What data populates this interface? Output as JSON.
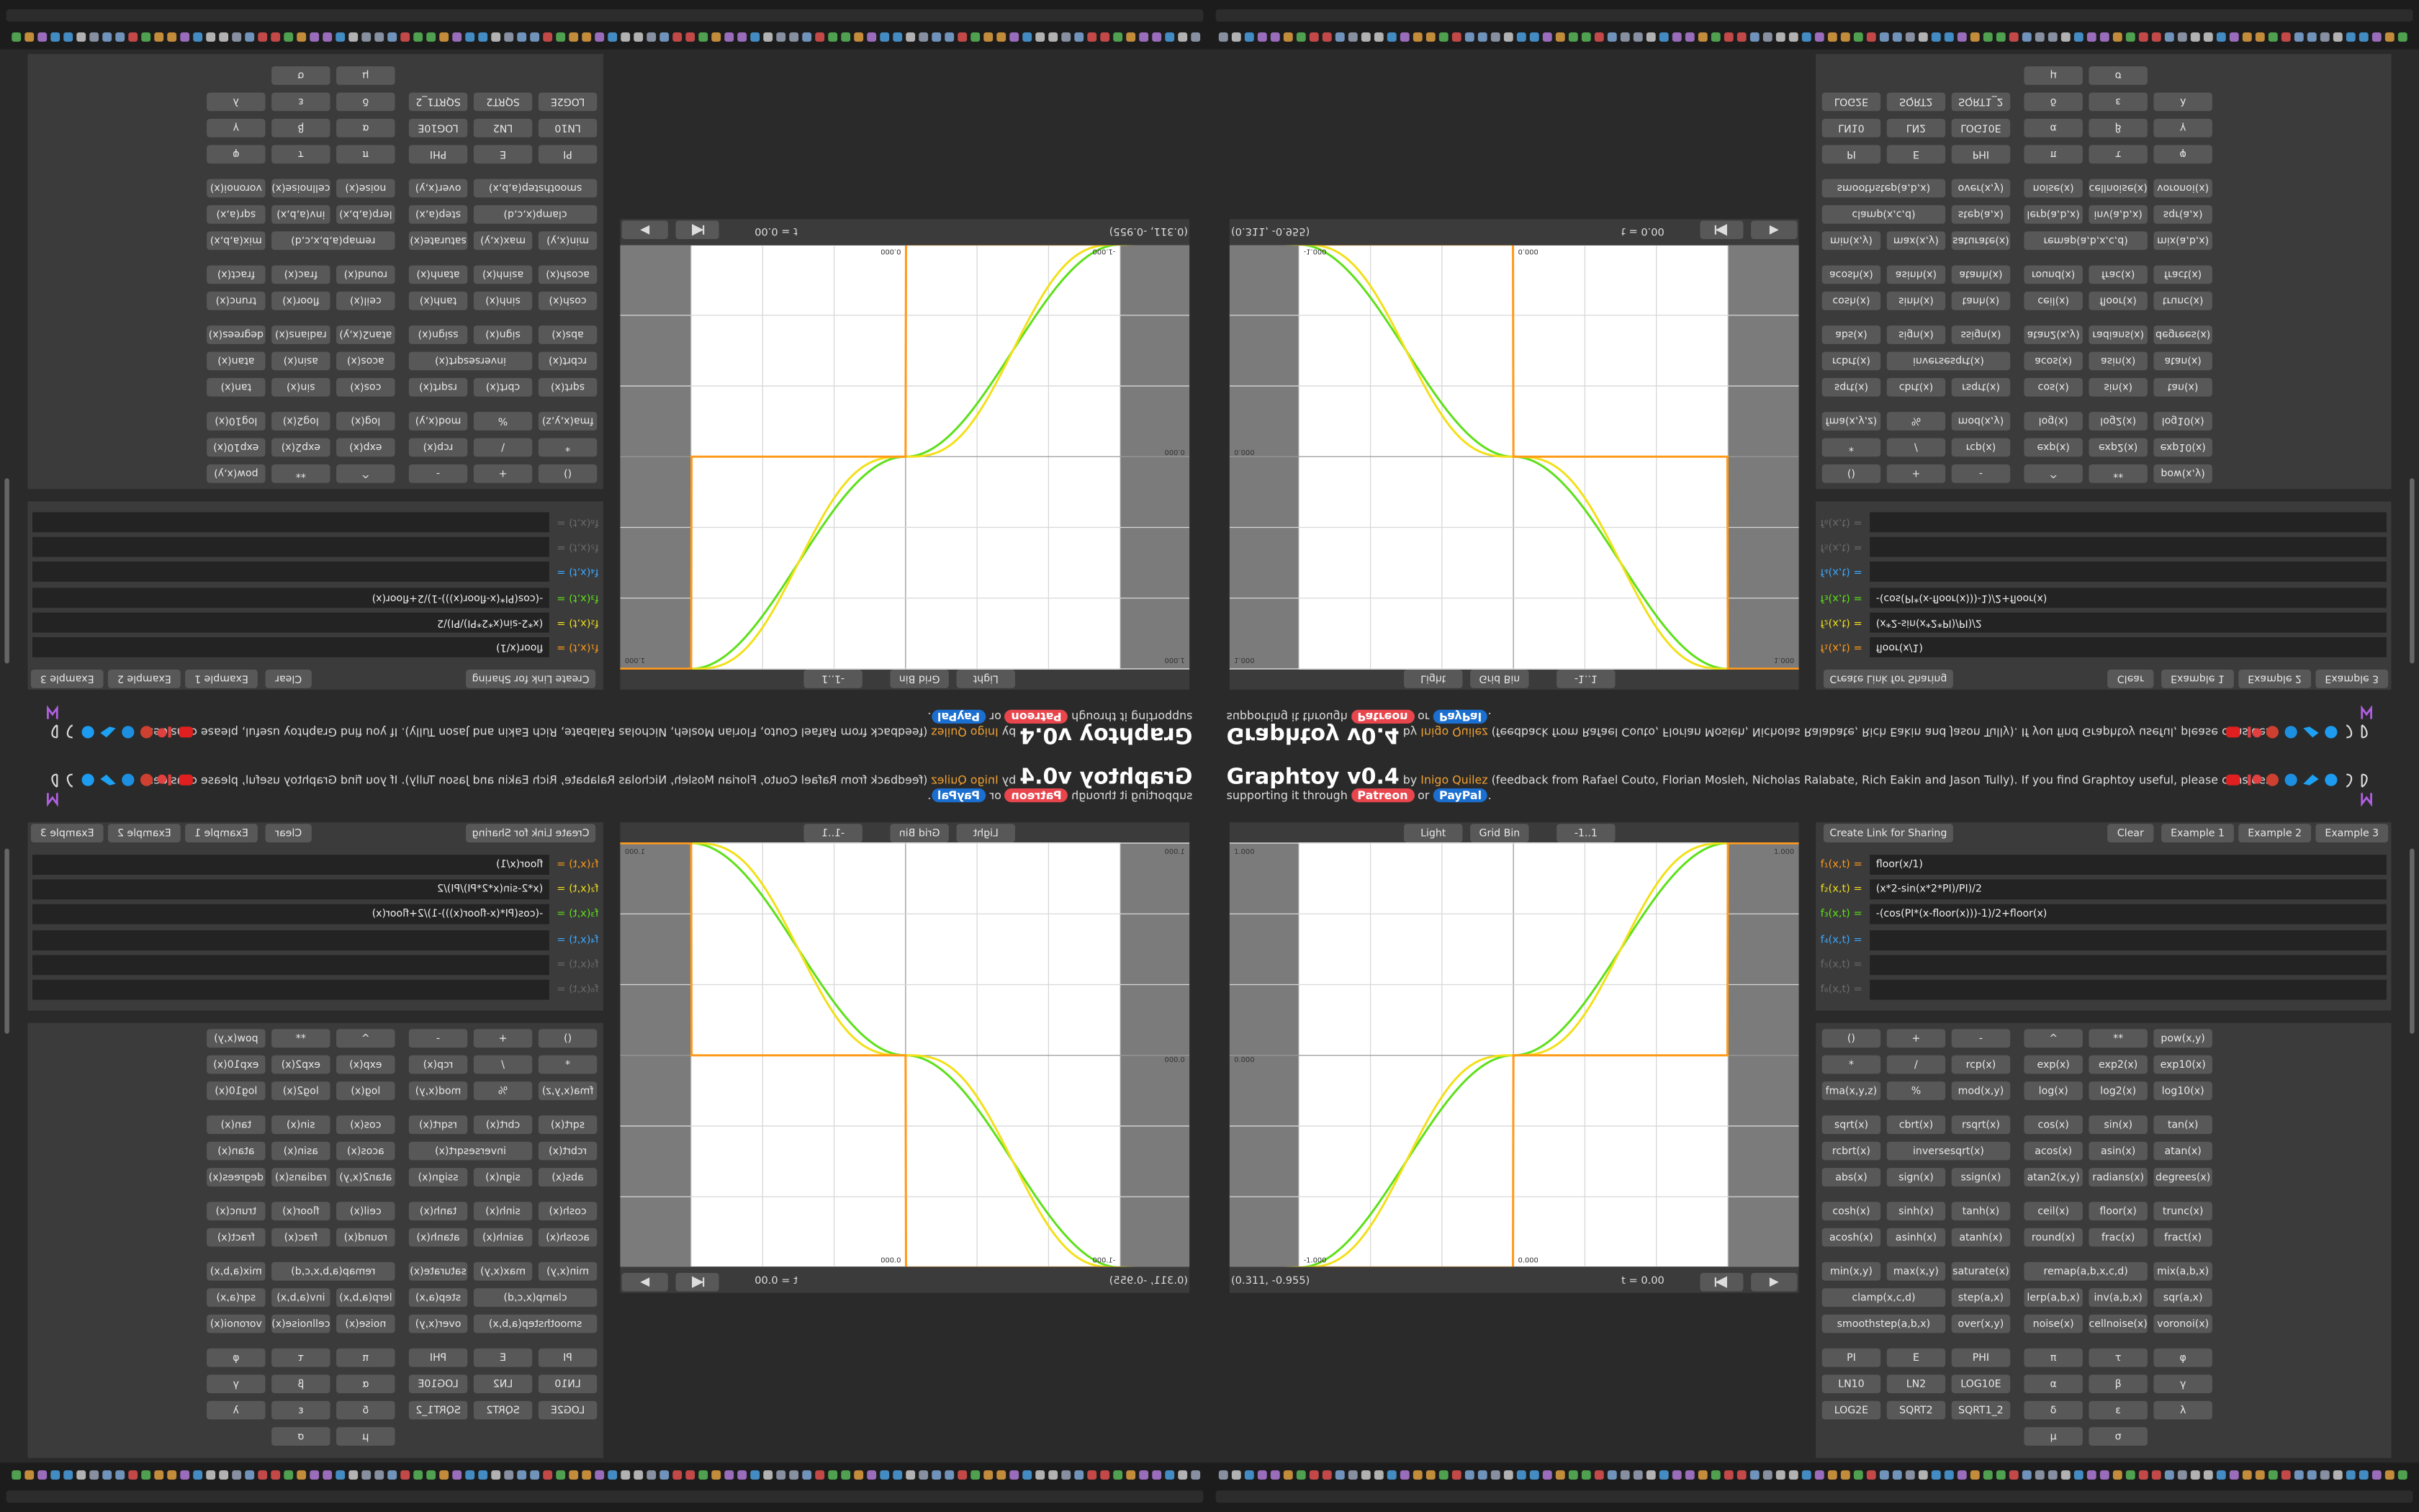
{
  "header": {
    "title": "Graphtoy v0.4",
    "by": "by",
    "author": "Inigo Quilez",
    "credits": "(feedback from Rafael Couto, Florian Mosleh, Nicholas Ralabate, Rich Eakin and Jason Tully). If you find Graphtoy useful, please consider",
    "support": "supporting it through",
    "patreon": "Patreon",
    "or": "or",
    "paypal": "PayPal",
    "end": "."
  },
  "plot": {
    "buttons": [
      "Light",
      "Grid Bin",
      "-1..1"
    ],
    "axis_labels": [
      "1.000",
      "0.000",
      "-1.000",
      "0.000",
      "1.000"
    ],
    "coords": "(0.311, -0.955)",
    "time": "t = 0.00"
  },
  "formulas": {
    "share": "Create Link for Sharing",
    "clear": "Clear",
    "examples": [
      "Example 1",
      "Example 2",
      "Example 3"
    ],
    "rows": [
      {
        "label": "f₁(x,t) =",
        "expr": "floor(x/1)",
        "color": "#ff9a1a"
      },
      {
        "label": "f₂(x,t) =",
        "expr": "(x*2-sin(x*2*PI)/PI)/2",
        "color": "#f2e01a"
      },
      {
        "label": "f₃(x,t) =",
        "expr": "-(cos(PI*(x-floor(x)))-1)/2+floor(x)",
        "color": "#5ee01a"
      },
      {
        "label": "f₄(x,t) =",
        "color": "#3aa8ff"
      },
      {
        "label": "f₅(x,t) =",
        "color": "#6a6a6a"
      },
      {
        "label": "f₆(x,t) =",
        "color": "#6a6a6a"
      }
    ]
  },
  "function_buttons": [
    [
      "()",
      "+",
      "-",
      "^",
      "**",
      "pow(x,y)"
    ],
    [
      "*",
      "/",
      "rcp(x)",
      "exp(x)",
      "exp2(x)",
      "exp10(x)"
    ],
    [
      "fma(x,y,z)",
      "%",
      "mod(x,y)",
      "log(x)",
      "log2(x)",
      "log10(x)"
    ],
    [
      "sqrt(x)",
      "cbrt(x)",
      "rsqrt(x)",
      "cos(x)",
      "sin(x)",
      "tan(x)"
    ],
    [
      "rcbrt(x)",
      "inversesqrt(x)",
      "acos(x)",
      "asin(x)",
      "atan(x)"
    ],
    [
      "abs(x)",
      "sign(x)",
      "ssign(x)",
      "atan2(x,y)",
      "radians(x)",
      "degrees(x)"
    ],
    [
      "cosh(x)",
      "sinh(x)",
      "tanh(x)",
      "ceil(x)",
      "floor(x)",
      "trunc(x)"
    ],
    [
      "acosh(x)",
      "asinh(x)",
      "atanh(x)",
      "round(x)",
      "frac(x)",
      "fract(x)"
    ],
    [
      "min(x,y)",
      "max(x,y)",
      "saturate(x)",
      "remap(a,b,x,c,d)",
      "mix(a,b,x)"
    ],
    [
      "clamp(x,c,d)",
      "step(a,x)",
      "lerp(a,b,x)",
      "inv(a,b,x)",
      "sqr(a,x)"
    ],
    [
      "smoothstep(a,b,x)",
      "over(x,y)",
      "noise(x)",
      "cellnoise(x)",
      "voronoi(x)"
    ],
    [
      "PI",
      "E",
      "PHI",
      "π",
      "τ",
      "φ"
    ],
    [
      "LN10",
      "LN2",
      "LOG10E",
      "α",
      "β",
      "γ"
    ],
    [
      "LOG2E",
      "SQRT2",
      "SQRT1_2",
      "δ",
      "ε",
      "λ"
    ],
    [
      "μ",
      "σ"
    ]
  ]
}
